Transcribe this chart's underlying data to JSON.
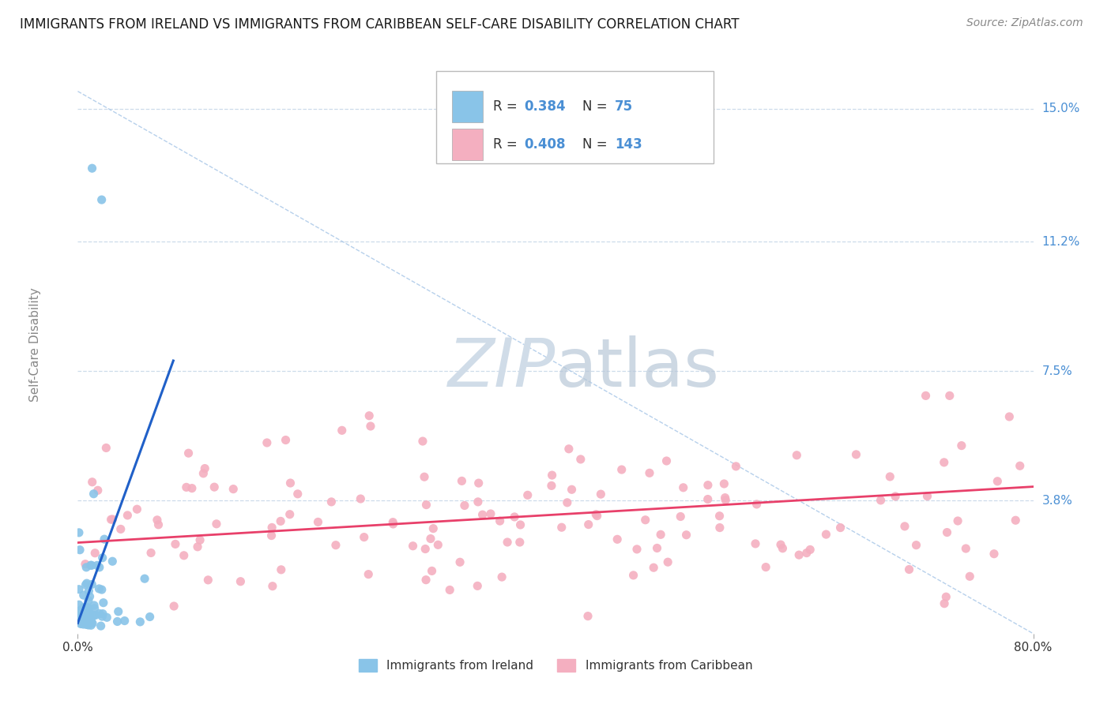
{
  "title": "IMMIGRANTS FROM IRELAND VS IMMIGRANTS FROM CARIBBEAN SELF-CARE DISABILITY CORRELATION CHART",
  "source": "Source: ZipAtlas.com",
  "ylabel": "Self-Care Disability",
  "xlim": [
    0.0,
    0.8
  ],
  "ylim": [
    0.0,
    0.165
  ],
  "ytick_vals": [
    0.038,
    0.075,
    0.112,
    0.15
  ],
  "ytick_labels": [
    "3.8%",
    "7.5%",
    "11.2%",
    "15.0%"
  ],
  "xtick_vals": [
    0.0,
    0.8
  ],
  "xtick_labels": [
    "0.0%",
    "80.0%"
  ],
  "ireland_R": "0.384",
  "ireland_N": "75",
  "caribbean_R": "0.408",
  "caribbean_N": "143",
  "ireland_color": "#89c4e8",
  "caribbean_color": "#f4afc0",
  "ireland_line_color": "#2060c8",
  "caribbean_line_color": "#e8406a",
  "trend_line_color": "#aac8e8",
  "background_color": "#ffffff",
  "grid_color": "#c8d8e8",
  "watermark_color": "#d0dce8",
  "legend_label_ireland": "Immigrants from Ireland",
  "legend_label_caribbean": "Immigrants from Caribbean",
  "label_color": "#4a8fd4",
  "text_color": "#333333"
}
